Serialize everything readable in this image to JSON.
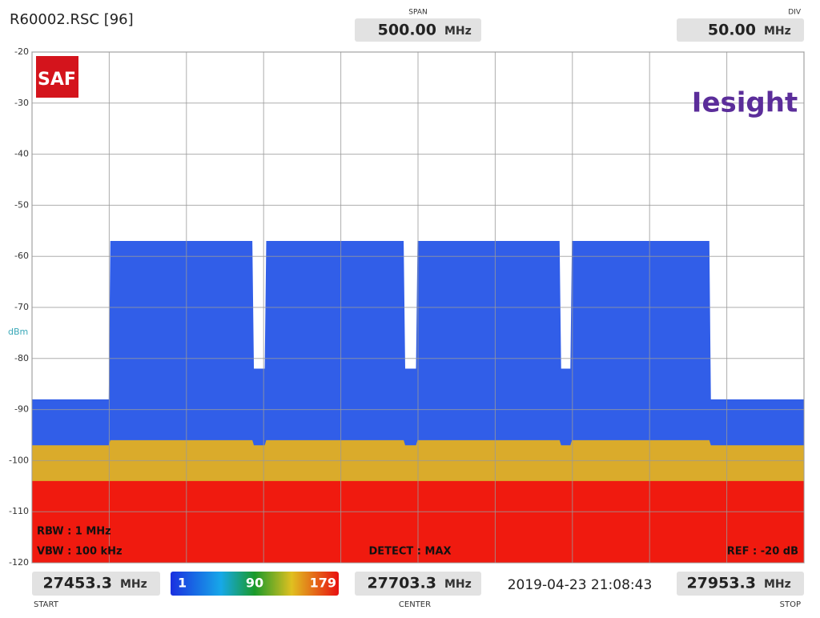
{
  "header": {
    "file": "R60002.RSC [96]",
    "span_label": "SPAN",
    "span": "500.00",
    "span_unit": "MHz",
    "div_label": "DIV",
    "div": "50.00",
    "div_unit": "MHz"
  },
  "logos": {
    "saf": "SAF",
    "iesight": "Iesight"
  },
  "chart_data": {
    "type": "area",
    "y_label": "dBm",
    "x": [
      27453.3,
      27503,
      27504,
      27596,
      27597,
      27604,
      27605,
      27694,
      27695,
      27702,
      27703,
      27795,
      27796,
      27802,
      27803,
      27892,
      27893,
      27953.3
    ],
    "series": [
      {
        "color": "#1f50e6",
        "values": [
          -88,
          -88,
          -57,
          -57,
          -82,
          -82,
          -57,
          -57,
          -82,
          -82,
          -57,
          -57,
          -82,
          -82,
          -57,
          -57,
          -88,
          -88
        ]
      },
      {
        "color": "#e8b21a",
        "values": [
          -97,
          -97,
          -96,
          -96,
          -97,
          -97,
          -96,
          -96,
          -97,
          -97,
          -96,
          -96,
          -97,
          -97,
          -96,
          -96,
          -97,
          -97
        ]
      },
      {
        "color": "#f20d0d",
        "values": [
          -104,
          -104,
          -104,
          -104,
          -104,
          -104,
          -104,
          -104,
          -104,
          -104,
          -104,
          -104,
          -104,
          -104,
          -104,
          -104,
          -104,
          -104
        ]
      }
    ],
    "xlim": [
      27453.3,
      27953.3
    ],
    "xticks": [
      27453.3,
      27503.3,
      27553.3,
      27603.3,
      27653.3,
      27703.3,
      27753.3,
      27803.3,
      27853.3,
      27903.3,
      27953.3
    ],
    "ylim": [
      -120,
      -20
    ],
    "yticks": [
      -20,
      -30,
      -40,
      -50,
      -60,
      -70,
      -80,
      -90,
      -100,
      -110,
      -120
    ],
    "grid": true
  },
  "overlay": {
    "rbw": "RBW : 1 MHz",
    "vbw": "VBW : 100 kHz",
    "detect": "DETECT : MAX",
    "ref": "REF : -20 dB"
  },
  "footer": {
    "start_unit": "MHz",
    "start_label": "START",
    "colorbar": [
      1,
      90,
      179
    ],
    "center": 27703.3,
    "center_unit": "MHz",
    "center_label": "CENTER",
    "timestamp": "2019-04-23 21:08:43",
    "stop_unit": "MHz",
    "stop_label": "STOP"
  }
}
